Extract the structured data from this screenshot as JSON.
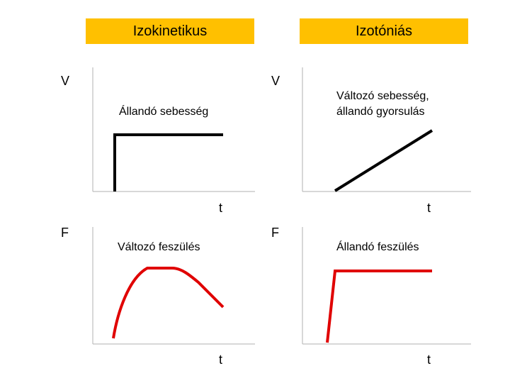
{
  "headers": {
    "left": "Izokinetikus",
    "right": "Izotóniás"
  },
  "panels": {
    "top_left": {
      "y_axis": "V",
      "x_axis": "t",
      "caption_1": "Állandó sebesség",
      "caption_2": ""
    },
    "top_right": {
      "y_axis": "V",
      "x_axis": "t",
      "caption_1": "Változó sebesség,",
      "caption_2": "állandó gyorsulás"
    },
    "bottom_left": {
      "y_axis": "F",
      "x_axis": "t",
      "caption_1": "Változó feszülés",
      "caption_2": ""
    },
    "bottom_right": {
      "y_axis": "F",
      "x_axis": "t",
      "caption_1": "Állandó feszülés",
      "caption_2": ""
    }
  },
  "colors": {
    "header_bg": "#ffc000",
    "velocity_curve": "#000000",
    "force_curve": "#e00000"
  }
}
